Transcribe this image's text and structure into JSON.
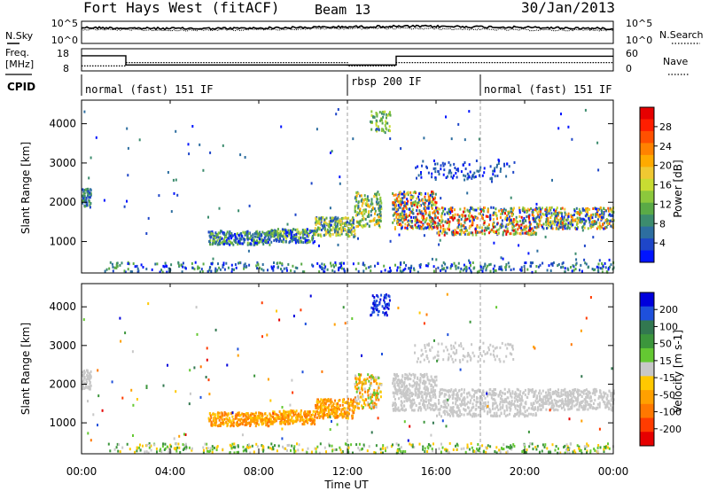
{
  "chart_data": {
    "type": "heatmap",
    "header": {
      "station": "Fort Hays West (fitACF)",
      "beam": "Beam 13",
      "date": "30/Jan/2013"
    },
    "x_axis": {
      "label": "Time UT",
      "range_hours": [
        0,
        24
      ],
      "tick_hours": [
        0,
        4,
        8,
        12,
        16,
        20,
        24
      ],
      "tick_labels": [
        "00:00",
        "04:00",
        "08:00",
        "12:00",
        "16:00",
        "20:00",
        "00:00"
      ],
      "vertical_dashed_lines_hours": [
        12,
        18
      ]
    },
    "noise_panel": {
      "left_label": "N.Sky",
      "right_label": "N.Search",
      "left_ticks": [
        "10^5",
        "10^0"
      ],
      "right_ticks": [
        "10^5",
        "10^0"
      ]
    },
    "freq_panel": {
      "left_label_line1": "Freq.",
      "left_label_line2": "[MHz]",
      "right_label": "Nave",
      "left_ticks": [
        18,
        8
      ],
      "left_range": [
        8,
        18
      ],
      "right_ticks": [
        60,
        0
      ],
      "right_range": [
        0,
        60
      ],
      "freq_series": {
        "x_hours": [
          0,
          2,
          2,
          14.2,
          14.2,
          24
        ],
        "y_mhz": [
          15,
          15,
          10.5,
          10.5,
          14.8,
          14.8
        ]
      },
      "nave_series": {
        "x_hours": [
          0,
          2,
          2,
          12,
          12,
          14.2,
          14.2,
          24
        ],
        "y": [
          12,
          12,
          22,
          22,
          12,
          12,
          22,
          22
        ]
      }
    },
    "cpid": {
      "label": "CPID",
      "segments": [
        {
          "start_hour": 0,
          "end_hour": 12,
          "text": "normal (fast) 151 IF"
        },
        {
          "start_hour": 12,
          "end_hour": 18,
          "text": "rbsp 200 IF"
        },
        {
          "start_hour": 18,
          "end_hour": 24,
          "text": "normal (fast) 151 IF"
        }
      ]
    },
    "power_panel": {
      "ylabel": "Slant Range [km]",
      "y_range_km": [
        200,
        4600
      ],
      "y_ticks": [
        1000,
        2000,
        3000,
        4000
      ],
      "colorbar": {
        "label": "Power [dB]",
        "ticks": [
          "28",
          "24",
          "20",
          "16",
          "12",
          "8",
          "4"
        ],
        "colors_bottom_to_top": [
          "#0014ff",
          "#1e46c8",
          "#2d6ea0",
          "#3c8c6e",
          "#5aaa46",
          "#8cc83c",
          "#c8dc32",
          "#f0c832",
          "#ffaa00",
          "#ff8200",
          "#ff5000",
          "#ff1e00",
          "#e60000"
        ]
      }
    },
    "velocity_panel": {
      "ylabel": "Slant Range [km]",
      "y_range_km": [
        200,
        4600
      ],
      "y_ticks": [
        1000,
        2000,
        3000,
        4000
      ],
      "colorbar": {
        "label": "Velocity [m s-1]",
        "ticks": [
          "200",
          "100",
          "50",
          "15",
          "-15",
          "-50",
          "-100",
          "-200"
        ],
        "colors_top_to_bottom": [
          "#0000dc",
          "#1e50dc",
          "#327850",
          "#3c963c",
          "#64c832",
          "#c8c8c8",
          "#ffc800",
          "#ffa000",
          "#ff7800",
          "#ff3c00",
          "#e60000"
        ]
      }
    }
  }
}
